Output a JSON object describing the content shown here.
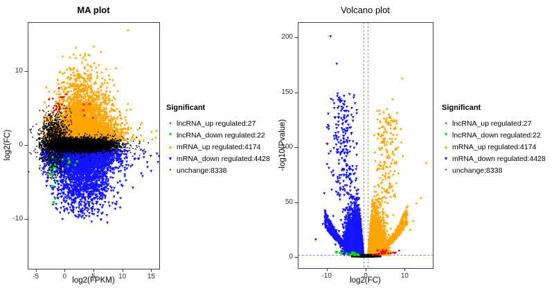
{
  "page": {
    "background": "#ffffff"
  },
  "colors": {
    "lncRNA_up": "#ff0000",
    "lncRNA_down": "#00d900",
    "mRNA_up": "#ffa500",
    "mRNA_down": "#1414ff",
    "unchange": "#000000",
    "guide_dashed": "#8585f0",
    "panel_border": "#404040",
    "tick_text": "#2e2e2e"
  },
  "legend": {
    "title": "Significant",
    "items": [
      {
        "label": "lncRNA_up regulated:27",
        "count": 27,
        "color": "#ff0000",
        "marker": "circle",
        "glyph": "●"
      },
      {
        "label": "lncRNA_down regulated:22",
        "count": 22,
        "color": "#00d900",
        "marker": "square",
        "glyph": "■"
      },
      {
        "label": "mRNA_up regulated:4174",
        "count": 4174,
        "color": "#ffa500",
        "marker": "triangle-up",
        "glyph": "▲"
      },
      {
        "label": "mRNA_down regulated:4428",
        "count": 4428,
        "color": "#1414ff",
        "marker": "triangle-down",
        "glyph": "▼"
      },
      {
        "label": "unchange:8338",
        "count": 8338,
        "color": "#000000",
        "marker": "dot",
        "glyph": "●"
      }
    ]
  },
  "chart_data": [
    {
      "type": "scatter",
      "title": "MA plot",
      "xlabel": "log2(FPKM)",
      "ylabel": "log2(FC)",
      "xlim": [
        -6.4,
        16.4
      ],
      "ylim": [
        -16.7,
        16.6
      ],
      "xticks": [
        -5,
        0,
        5,
        10,
        15
      ],
      "yticks": [
        -10,
        0,
        10
      ],
      "grid": false,
      "legend_position": "right",
      "series": [
        {
          "name": "mRNA_up regulated",
          "count": 4174,
          "color": "#ffa500",
          "marker": "triangle-up",
          "clusters": [
            {
              "k": "c",
              "n": 3900,
              "x": [
                "n",
                3.3,
                2.7,
                -3.6,
                13.2
              ],
              "sign": 1,
              "y0": 0.62,
              "ym": [
                "e",
                0,
                2.0,
                13.5
              ],
              "apex": [
                3,
                14
              ]
            },
            {
              "k": "c",
              "n": 250,
              "x": [
                "n",
                2.6,
                1.7,
                -3.0,
                9.0
              ],
              "sign": 1,
              "y0": 4.5,
              "ym": [
                "e",
                0,
                2.2,
                8.0
              ],
              "apex": [
                3,
                16
              ]
            },
            {
              "k": "c",
              "n": 20,
              "x": [
                "u",
                9.5,
                16.2
              ],
              "sign": 1,
              "y0": 0.62,
              "ym": [
                "e",
                0,
                1.2,
                4.0
              ]
            },
            {
              "k": "p",
              "pts": [
                [
                  11,
                  15.5
                ],
                [
                  6.3,
                  12.6
                ],
                [
                  3.2,
                  11.8
                ],
                [
                  8.9,
                  10.4
                ]
              ]
            }
          ]
        },
        {
          "name": "mRNA_down regulated",
          "count": 4428,
          "color": "#1414ff",
          "marker": "triangle-down",
          "clusters": [
            {
              "k": "c",
              "n": 4200,
              "x": [
                "n",
                3.1,
                2.7,
                -3.8,
                13.6
              ],
              "sign": -1,
              "y0": 0.62,
              "ym": [
                "e",
                0,
                1.85,
                9.2
              ],
              "apex": [
                3,
                14
              ]
            },
            {
              "k": "c",
              "n": 200,
              "x": [
                "n",
                3.6,
                2.6,
                -2.0,
                11.0
              ],
              "sign": -1,
              "y0": 5.3,
              "ym": [
                "e",
                0,
                1.6,
                5.2
              ]
            },
            {
              "k": "c",
              "n": 25,
              "x": [
                "u",
                9.5,
                16.5
              ],
              "sign": -1,
              "y0": 0.62,
              "ym": [
                "e",
                0,
                1.2,
                3.5
              ]
            },
            {
              "k": "p",
              "pts": [
                [
                  16.6,
                  -1.8
                ],
                [
                  15,
                  -3.5
                ],
                [
                  13.5,
                  -4.2
                ]
              ]
            }
          ]
        },
        {
          "name": "unchange",
          "count": 8338,
          "color": "#000000",
          "marker": "dot",
          "clusters": [
            {
              "k": "c",
              "n": 6900,
              "x": [
                "n",
                3.2,
                2.6,
                -4.4,
                12.9
              ],
              "y": [
                "n",
                0,
                0.38,
                -1.08,
                1.08
              ]
            },
            {
              "k": "c",
              "n": 1200,
              "x": [
                "n",
                -1.7,
                1.3,
                -6.0,
                1.2
              ],
              "y": [
                "n",
                0.5,
                1.9,
                -4.7,
                5.3
              ]
            },
            {
              "k": "c",
              "n": 230,
              "x": [
                "n",
                4.5,
                3.2,
                -3.0,
                13.0
              ],
              "y": [
                "n",
                0,
                0.85,
                -2.3,
                2.3
              ]
            },
            {
              "k": "p",
              "pts": [
                [
                  -6.2,
                  -3.6
                ],
                [
                  14.5,
                  0.3
                ],
                [
                  13.8,
                  -0.6
                ],
                [
                  12.5,
                  1
                ],
                [
                  -5.5,
                  2.5
                ],
                [
                  -5.8,
                  -1.2
                ],
                [
                  11.8,
                  -1.5
                ],
                [
                  12.9,
                  0.2
                ]
              ]
            }
          ]
        },
        {
          "name": "lncRNA_down regulated",
          "count": 22,
          "color": "#00d900",
          "marker": "square",
          "clusters": [
            {
              "k": "c",
              "n": 15,
              "x": [
                "n",
                -1.9,
                0.8,
                -3.1,
                0.1
              ],
              "y": [
                "n",
                -4.6,
                1.9,
                -7.7,
                -1.6
              ]
            },
            {
              "k": "c",
              "n": 7,
              "x": [
                "u",
                -0.6,
                2.3
              ],
              "y": [
                "u",
                -3.5,
                -1.5
              ]
            }
          ]
        },
        {
          "name": "lncRNA_up regulated",
          "count": 27,
          "color": "#ff0000",
          "marker": "circle",
          "clusters": [
            {
              "k": "c",
              "n": 19,
              "x": [
                "n",
                -1.6,
                0.8,
                -2.9,
                0.6
              ],
              "y": [
                "n",
                5.6,
                1.4,
                3.3,
                8.3
              ]
            },
            {
              "k": "c",
              "n": 8,
              "x": [
                "u",
                0.3,
                5.0
              ],
              "y": [
                "u",
                3.2,
                5.6
              ]
            }
          ]
        }
      ]
    },
    {
      "type": "scatter",
      "title": "Volcano plot",
      "xlabel": "log2(FC)",
      "ylabel": "-log10(Pvalue)",
      "xlim": [
        -17.4,
        17.2
      ],
      "ylim": [
        -10,
        214
      ],
      "xticks": [
        -10,
        0,
        10
      ],
      "yticks": [
        0,
        50,
        100,
        150,
        200
      ],
      "grid": false,
      "legend_position": "right",
      "guides": {
        "vlines": [
          -0.585,
          0.585
        ],
        "hline": 2,
        "color": "#8585f0",
        "style": "dashed"
      },
      "series": [
        {
          "name": "mRNA_up regulated",
          "count": 4174,
          "color": "#ffa500",
          "marker": "triangle-up",
          "clusters": [
            {
              "k": "w",
              "n": 3580,
              "sign": 1,
              "x0": 0.62,
              "xs": 1.8,
              "ylo": 2,
              "ys": 10,
              "ycap": 100,
              "curve": 0.02,
              "xmax": 12.5
            },
            {
              "k": "t",
              "n": 420,
              "sign": 1,
              "xa": 1.5,
              "xb": 10.8,
              "p": 2,
              "a": 2,
              "b": 0.32,
              "jy": 0.45
            },
            {
              "k": "c",
              "n": 160,
              "x": [
                "n",
                5.5,
                1.6,
                2.2,
                9.5
              ],
              "y": [
                "u",
                55,
                135
              ]
            },
            {
              "k": "p",
              "pts": [
                [
                  9.4,
                  163
                ],
                [
                  15.5,
                  86
                ],
                [
                  6.9,
                  144
                ],
                [
                  7.2,
                  125
                ],
                [
                  7.9,
                  122
                ],
                [
                  7.6,
                  117
                ],
                [
                  6.5,
                  113
                ],
                [
                  13,
                  49
                ],
                [
                  14.2,
                  54
                ],
                [
                  12.2,
                  33
                ],
                [
                  11.4,
                  25
                ],
                [
                  5.9,
                  130
                ],
                [
                  6.2,
                  108
                ],
                [
                  8.3,
                  100
                ]
              ]
            }
          ]
        },
        {
          "name": "mRNA_down regulated",
          "count": 4428,
          "color": "#1414ff",
          "marker": "triangle-down",
          "clusters": [
            {
              "k": "w",
              "n": 3750,
              "sign": -1,
              "x0": 0.62,
              "xs": 1.85,
              "ylo": 2,
              "ys": 11,
              "ycap": 105,
              "curve": 0.02,
              "xmax": 12.8
            },
            {
              "k": "t",
              "n": 455,
              "sign": -1,
              "xa": 1.5,
              "xb": 10.5,
              "p": 2,
              "a": 2,
              "b": 0.3,
              "jy": 0.45
            },
            {
              "k": "c",
              "n": 212,
              "x": [
                "n",
                -5.8,
                1.7,
                -9.9,
                -2.3
              ],
              "y": [
                "u",
                55,
                150
              ]
            },
            {
              "k": "p",
              "pts": [
                [
                  -9,
                  201
                ],
                [
                  -7.4,
                  176
                ],
                [
                  -8.9,
                  144
                ],
                [
                  -8.1,
                  140
                ],
                [
                  -7,
                  120
                ],
                [
                  -7.7,
                  113
                ],
                [
                  -9.8,
                  103
                ],
                [
                  -6.5,
                  100
                ],
                [
                  -11,
                  30
                ],
                [
                  -12.8,
                  16
                ],
                [
                  -10.6,
                  58
                ]
              ]
            }
          ]
        },
        {
          "name": "unchange",
          "count": 8338,
          "color": "#000000",
          "marker": "dot",
          "clusters": [
            {
              "k": "c",
              "n": 7900,
              "x": [
                "n",
                0.2,
                1.0,
                -3.2,
                3.2
              ],
              "y": [
                "u",
                0.15,
                2.15
              ]
            },
            {
              "k": "c",
              "n": 430,
              "x": [
                "n",
                0.2,
                1.6,
                -3.6,
                3.8
              ],
              "y": [
                "u",
                0.1,
                1.3
              ]
            },
            {
              "k": "p",
              "pts": [
                [
                  2.9,
                  2.3
                ],
                [
                  -2.6,
                  1.8
                ],
                [
                  3.3,
                  1.2
                ],
                [
                  -2.9,
                  0.9
                ],
                [
                  2.4,
                  2.0
                ],
                [
                  -2.3,
                  2.1
                ],
                [
                  3.1,
                  0.6
                ],
                [
                  -3.3,
                  0.7
                ]
              ]
            }
          ]
        },
        {
          "name": "lncRNA_down regulated",
          "count": 22,
          "color": "#00d900",
          "marker": "square",
          "clusters": [
            {
              "k": "t",
              "n": 15,
              "sign": -1,
              "xa": 1.8,
              "xb": 7.8,
              "p": 1,
              "a": 1.2,
              "b": 0.35,
              "jy": 0.5
            },
            {
              "k": "c",
              "n": 7,
              "x": [
                "u",
                -4.2,
                -1.8
              ],
              "y": [
                "u",
                2.2,
                4.3
              ]
            }
          ]
        },
        {
          "name": "lncRNA_up regulated",
          "count": 27,
          "color": "#ff0000",
          "marker": "circle",
          "clusters": [
            {
              "k": "t",
              "n": 17,
              "sign": 1,
              "xa": 1.7,
              "xb": 8.6,
              "p": 1,
              "a": 1.2,
              "b": 0.42,
              "jy": 0.5
            },
            {
              "k": "c",
              "n": 10,
              "x": [
                "u",
                2.6,
                5.6
              ],
              "y": [
                "u",
                3.4,
                6.6
              ]
            }
          ]
        }
      ]
    }
  ]
}
